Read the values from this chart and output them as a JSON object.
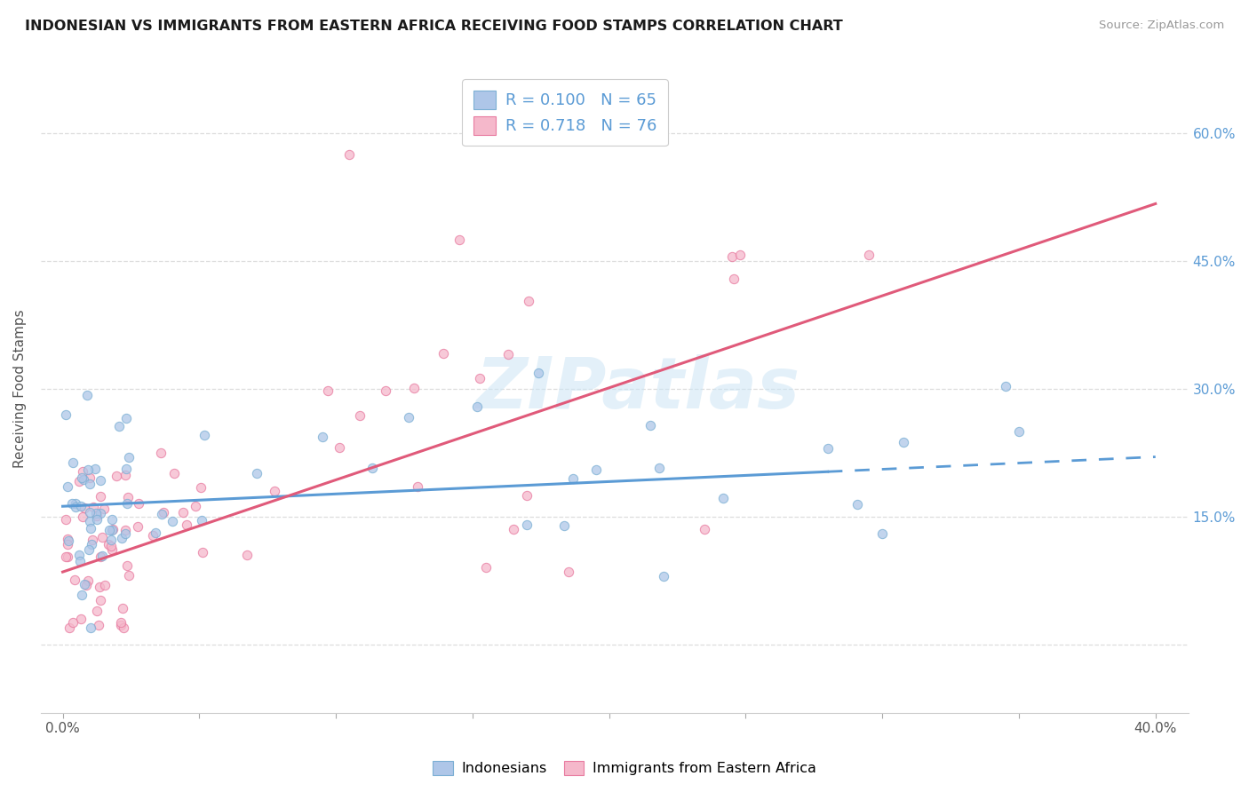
{
  "title": "INDONESIAN VS IMMIGRANTS FROM EASTERN AFRICA RECEIVING FOOD STAMPS CORRELATION CHART",
  "source": "Source: ZipAtlas.com",
  "ylabel": "Receiving Food Stamps",
  "color_indonesian_fill": "#aec6e8",
  "color_indonesian_edge": "#7bafd4",
  "color_eastern_africa_fill": "#f5b8cb",
  "color_eastern_africa_edge": "#e87ba0",
  "color_line_indonesian": "#5b9bd5",
  "color_line_eastern_africa": "#e05a7a",
  "color_right_axis": "#5b9bd5",
  "watermark": "ZIPatlas",
  "indonesian_R": 0.1,
  "indonesian_N": 65,
  "eastern_africa_R": 0.718,
  "eastern_africa_N": 76,
  "xlim": [
    0.0,
    0.4
  ],
  "ylim": [
    -0.08,
    0.68
  ],
  "grid_color": "#dddddd",
  "legend_label_1": "R = 0.100   N = 65",
  "legend_label_2": "R = 0.718   N = 76",
  "bottom_legend_1": "Indonesians",
  "bottom_legend_2": "Immigrants from Eastern Africa"
}
